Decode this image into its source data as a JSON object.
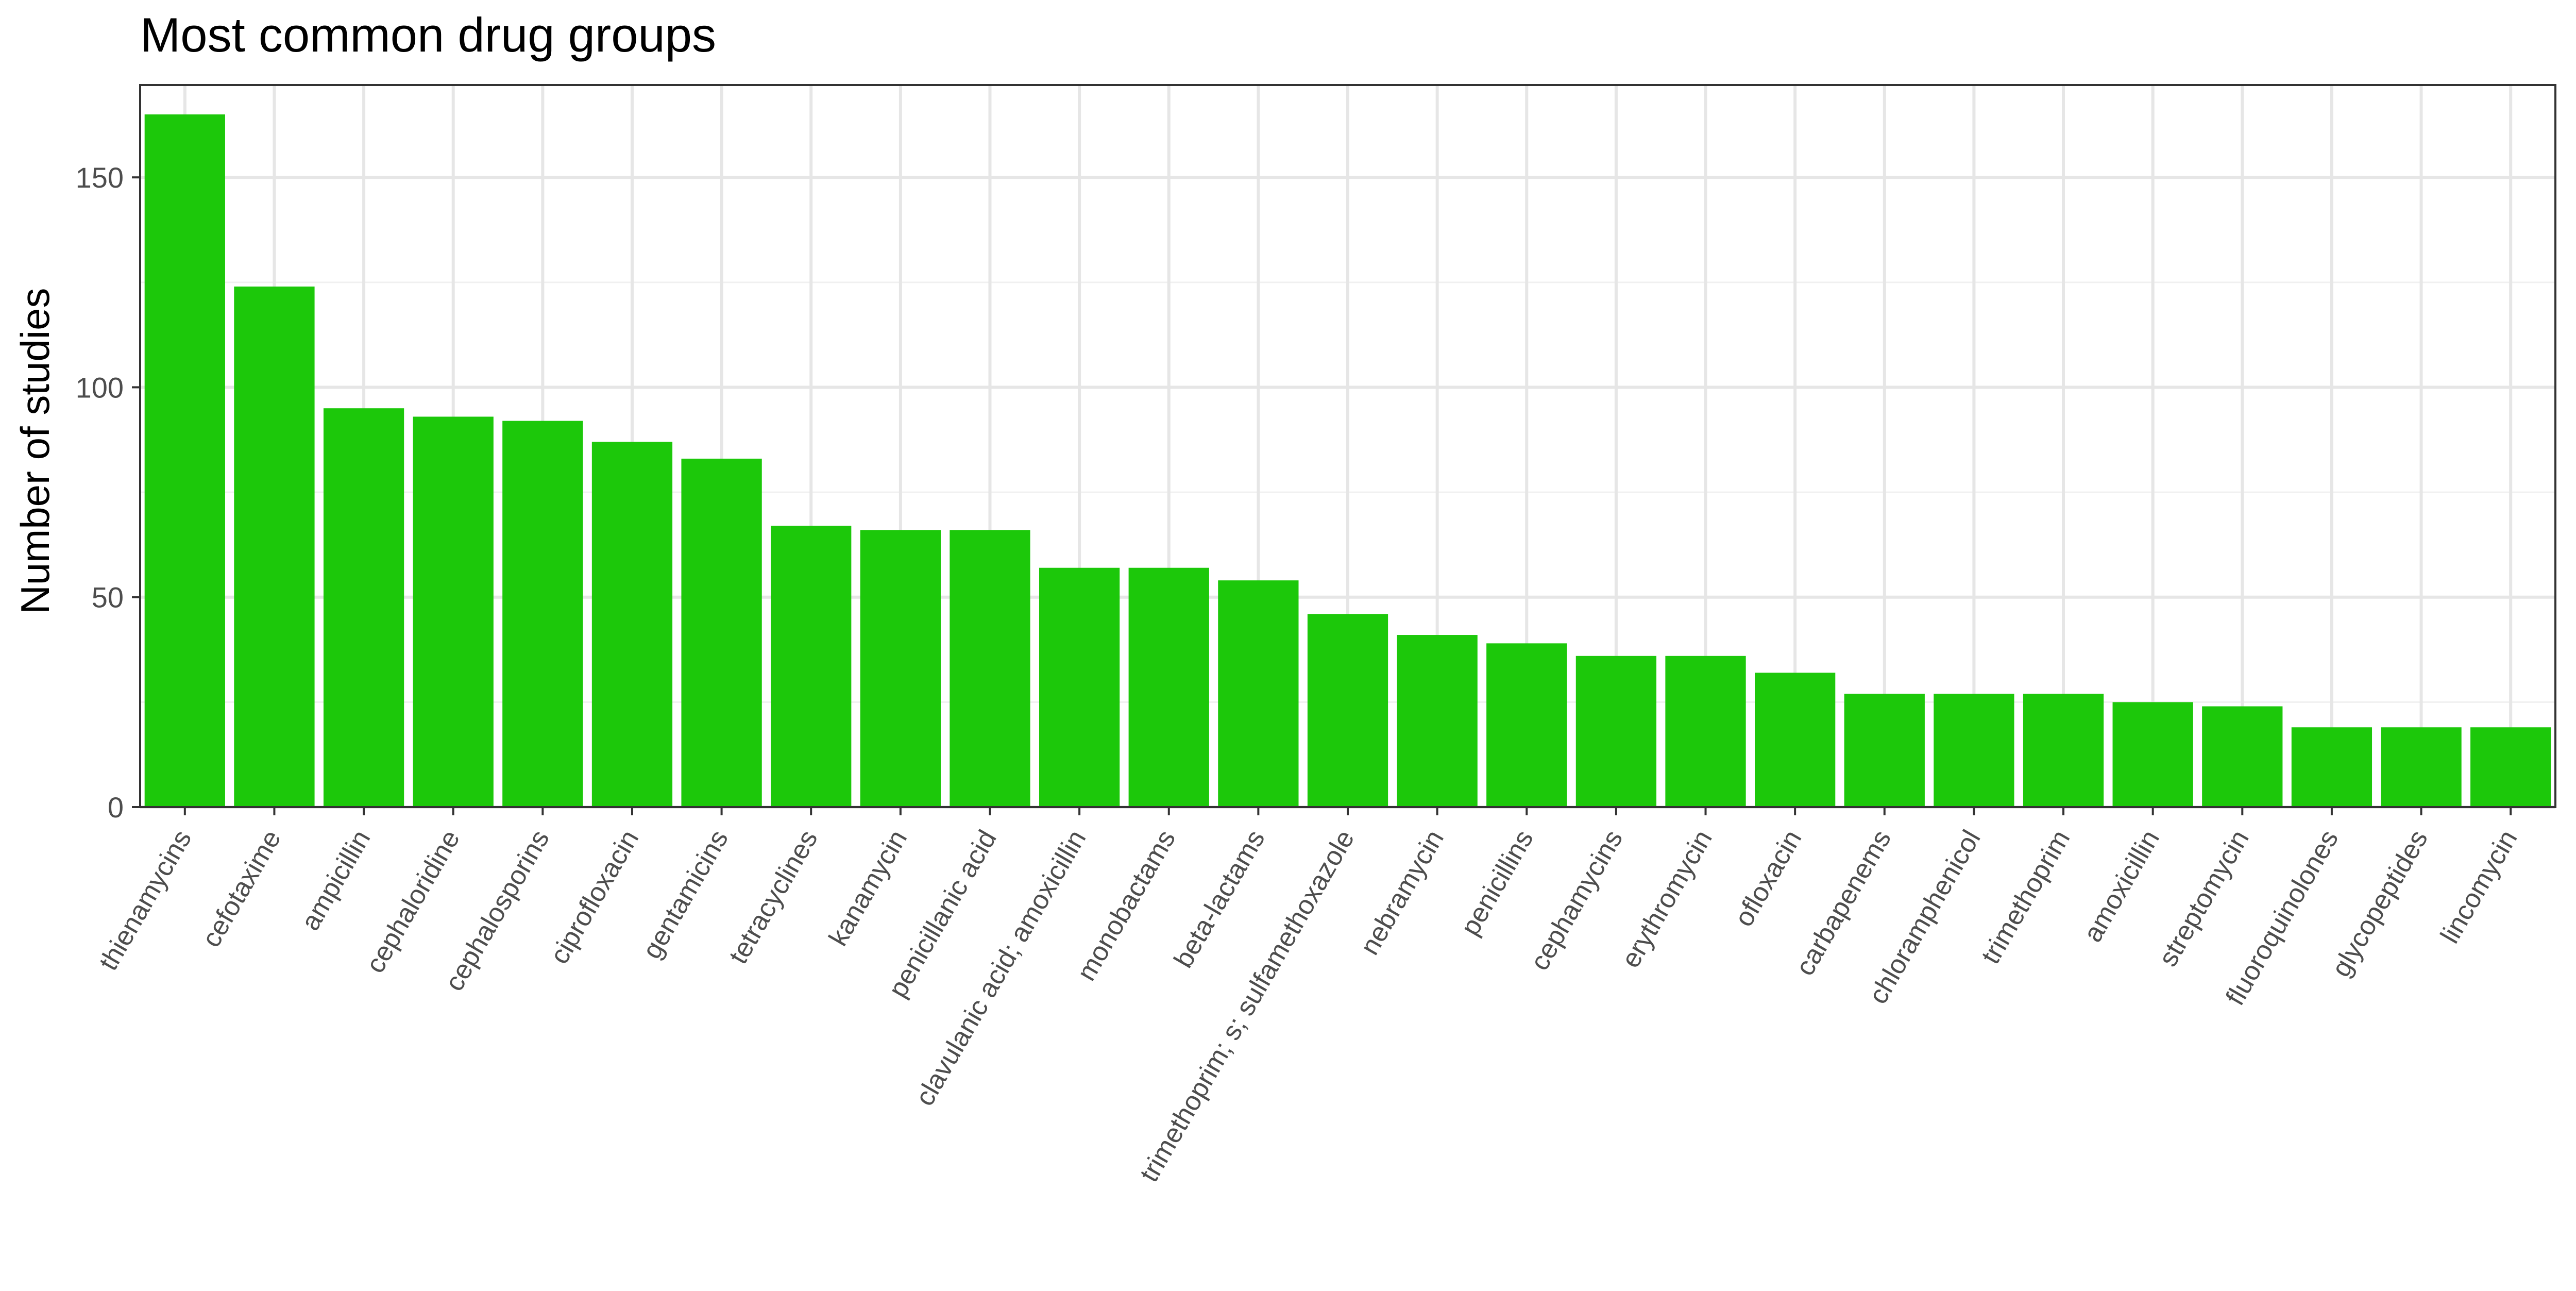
{
  "chart_data": {
    "type": "bar",
    "title": "Most common drug groups",
    "xlabel": "",
    "ylabel": "Number of studies",
    "ylim": [
      0,
      172
    ],
    "yticks": [
      0,
      50,
      100,
      150
    ],
    "grid": true,
    "legend": "none",
    "bar_color": "#1cc80a",
    "categories": [
      "thienamycins",
      "cefotaxime",
      "ampicillin",
      "cephaloridine",
      "cephalosporins",
      "ciprofloxacin",
      "gentamicins",
      "tetracyclines",
      "kanamycin",
      "penicillanic acid",
      "clavulanic acid; amoxicillin",
      "monobactams",
      "beta-lactams",
      "trimethoprim;  s; sulfamethoxazole",
      "nebramycin",
      "penicillins",
      "cephamycins",
      "erythromycin",
      "ofloxacin",
      "carbapenems",
      "chloramphenicol",
      "trimethoprim",
      "amoxicillin",
      "streptomycin",
      "fluoroquinolones",
      "glycopeptides",
      "lincomycin"
    ],
    "values": [
      165,
      124,
      95,
      93,
      92,
      87,
      83,
      67,
      66,
      66,
      57,
      57,
      54,
      46,
      41,
      39,
      36,
      36,
      32,
      27,
      27,
      27,
      25,
      24,
      19,
      19,
      19
    ]
  }
}
